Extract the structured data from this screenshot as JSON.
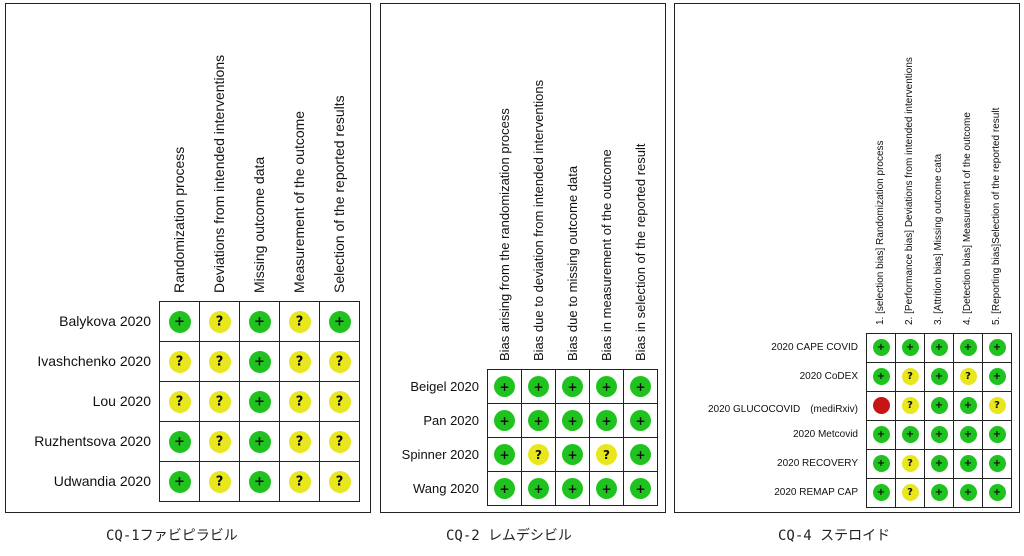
{
  "legend": {
    "green": "#1fc21f",
    "yellow": "#e8e61c",
    "red": "#c81414",
    "low_symbol": "+",
    "unclear_symbol": "?",
    "high_symbol": ""
  },
  "panels": [
    {
      "caption": "CQ-1ファビピラビル",
      "domains": [
        "Randomization process",
        "Deviations from intended interventions",
        "Missing outcome data",
        "Measurement of the outcome",
        "Selection of the reported results"
      ],
      "studies": [
        {
          "name": "Balykova 2020",
          "ratings": [
            "low",
            "unclear",
            "low",
            "unclear",
            "low"
          ]
        },
        {
          "name": "Ivashchenko 2020",
          "ratings": [
            "unclear",
            "unclear",
            "low",
            "unclear",
            "unclear"
          ]
        },
        {
          "name": "Lou 2020",
          "ratings": [
            "unclear",
            "unclear",
            "low",
            "unclear",
            "unclear"
          ]
        },
        {
          "name": "Ruzhentsova 2020",
          "ratings": [
            "low",
            "unclear",
            "low",
            "unclear",
            "unclear"
          ]
        },
        {
          "name": "Udwandia 2020",
          "ratings": [
            "low",
            "unclear",
            "low",
            "unclear",
            "unclear"
          ]
        }
      ]
    },
    {
      "caption": "CQ-2 レムデシビル",
      "domains": [
        "Bias arising from the randomization process",
        "Bias due to deviation from intended interventions",
        "Bias due to missing outcome data",
        "Bias in measurement of the outcome",
        "Bias in selection of the reported result"
      ],
      "studies": [
        {
          "name": "Beigel 2020",
          "ratings": [
            "low",
            "low",
            "low",
            "low",
            "low"
          ]
        },
        {
          "name": "Pan 2020",
          "ratings": [
            "low",
            "low",
            "low",
            "low",
            "low"
          ]
        },
        {
          "name": "Spinner 2020",
          "ratings": [
            "low",
            "unclear",
            "low",
            "unclear",
            "low"
          ]
        },
        {
          "name": "Wang 2020",
          "ratings": [
            "low",
            "low",
            "low",
            "low",
            "low"
          ]
        }
      ]
    },
    {
      "caption": "CQ-4 ステロイド",
      "domains": [
        "1. [selection bias] Randomization process",
        "2. [Performance bias] Deviations from intended interventions",
        "3. [Attrition bias] Missing outcome cata",
        "4. [Detection bias] Measurement of the outcome",
        "5. [Reporting bias]Selection of the reported result"
      ],
      "studies": [
        {
          "name": "2020 CAPE COVID",
          "ratings": [
            "low",
            "low",
            "low",
            "low",
            "low"
          ]
        },
        {
          "name": "2020 CoDEX",
          "ratings": [
            "low",
            "unclear",
            "low",
            "unclear",
            "low"
          ]
        },
        {
          "name": "2020 GLUCOCOVID　(mediRxiv)",
          "ratings": [
            "high",
            "unclear",
            "low",
            "low",
            "unclear"
          ]
        },
        {
          "name": "2020 Metcovid",
          "ratings": [
            "low",
            "low",
            "low",
            "low",
            "low"
          ]
        },
        {
          "name": "2020 RECOVERY",
          "ratings": [
            "low",
            "unclear",
            "low",
            "low",
            "low"
          ]
        },
        {
          "name": "2020 REMAP CAP",
          "ratings": [
            "low",
            "unclear",
            "low",
            "low",
            "low"
          ]
        }
      ]
    }
  ]
}
